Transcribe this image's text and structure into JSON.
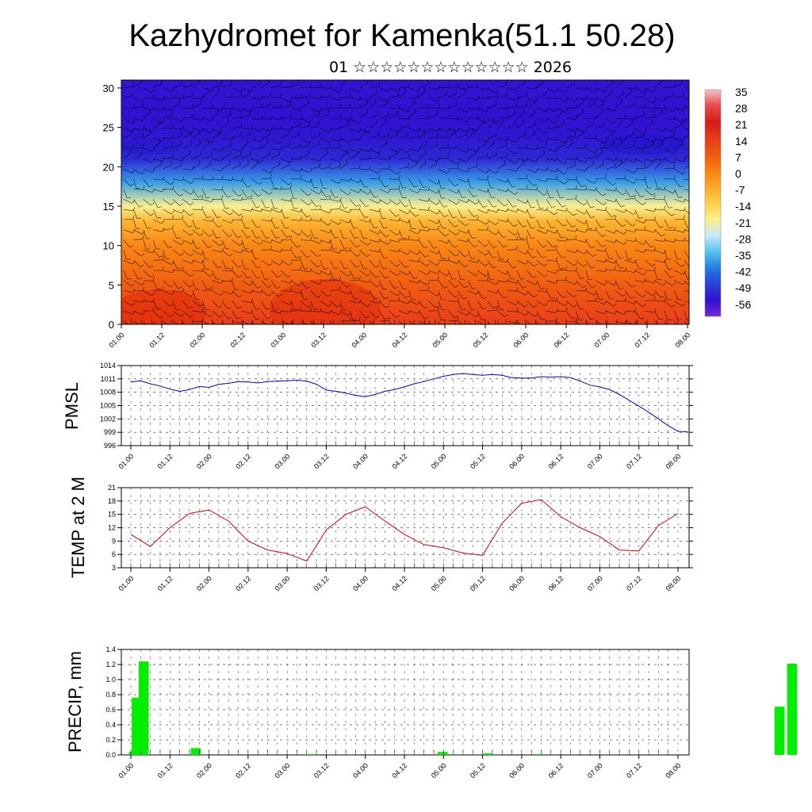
{
  "title": "Kazhydromet for Kamenka(51.1 50.28)",
  "subtitle": "01 ☆☆☆☆☆☆☆☆☆☆☆☆☆ 2026",
  "x_ticks": [
    "01.00",
    "01.12",
    "02.00",
    "02.12",
    "03.00",
    "03.12",
    "04.00",
    "04.12",
    "05.00",
    "05.12",
    "06.00",
    "06.12",
    "07.00",
    "07.12",
    "08.00"
  ],
  "chart_data": [
    {
      "type": "heatmap",
      "name": "vertical cross-section (temperature shading with wind barbs)",
      "y_ticks": [
        "0",
        "5",
        "10",
        "15",
        "20",
        "25",
        "30"
      ],
      "ylim": [
        0,
        31
      ],
      "colorbar": {
        "labels": [
          "35",
          "28",
          "21",
          "14",
          "7",
          "0",
          "-7",
          "-14",
          "-21",
          "-28",
          "-35",
          "-42",
          "-49",
          "-56"
        ],
        "colors": [
          "#f2c4c4",
          "#e84a4a",
          "#d51a1a",
          "#e83a1a",
          "#f05a10",
          "#f88010",
          "#fcaa28",
          "#fdd04a",
          "#fdf08a",
          "#c8e8f8",
          "#58c4f0",
          "#2080e0",
          "#2a40d8",
          "#3010d0",
          "#7828d8"
        ]
      },
      "temperature_profile": [
        [
          0,
          16
        ],
        [
          5,
          9
        ],
        [
          10,
          1
        ],
        [
          13,
          -7
        ],
        [
          15,
          -20
        ],
        [
          18,
          -38
        ],
        [
          21,
          -52
        ],
        [
          24,
          -55
        ],
        [
          27,
          -56
        ],
        [
          30,
          -55
        ]
      ]
    },
    {
      "type": "line",
      "ylabel": "PMSL",
      "y_ticks": [
        "996",
        "999",
        "1002",
        "1005",
        "1008",
        "1011",
        "1014"
      ],
      "ylim": [
        996,
        1014
      ],
      "color": "#0000cc",
      "x": [
        0,
        1,
        2,
        3,
        4,
        5,
        6,
        7,
        8,
        9,
        10,
        11,
        12,
        13,
        14,
        15,
        16,
        17,
        18,
        19,
        20,
        21,
        22,
        23,
        24,
        25,
        26,
        27,
        28,
        29,
        30,
        31,
        32,
        33,
        34,
        35,
        36,
        37,
        38,
        39,
        40,
        41,
        42,
        43,
        44,
        45,
        46,
        47,
        48,
        49,
        50,
        51,
        52,
        53,
        54,
        55,
        56,
        57
      ],
      "values": [
        1010.3,
        1010.6,
        1009.9,
        1009.4,
        1008.7,
        1008.2,
        1008.6,
        1009.3,
        1009.1,
        1009.8,
        1010.0,
        1010.4,
        1010.3,
        1010.1,
        1010.4,
        1010.5,
        1010.6,
        1010.7,
        1010.5,
        1009.8,
        1008.5,
        1008.2,
        1007.8,
        1007.3,
        1007.0,
        1007.5,
        1008.2,
        1008.6,
        1009.2,
        1009.9,
        1010.4,
        1011.0,
        1011.6,
        1012.0,
        1012.2,
        1012.0,
        1011.8,
        1012.0,
        1011.8,
        1011.3,
        1011.2,
        1011.2,
        1011.5,
        1011.4,
        1011.5,
        1011.3,
        1010.5,
        1009.6,
        1009.2,
        1008.6,
        1007.5,
        1006.2,
        1004.9,
        1003.5,
        1002.0,
        1000.5,
        999.2,
        999.1
      ]
    },
    {
      "type": "line",
      "ylabel": "TEMP at 2 M",
      "y_ticks": [
        "3",
        "6",
        "9",
        "12",
        "15",
        "18",
        "21"
      ],
      "ylim": [
        3,
        21
      ],
      "color": "#dd0000",
      "x": [
        0,
        2,
        4,
        6,
        8,
        10,
        12,
        14,
        16,
        18,
        20,
        22,
        24,
        26,
        28,
        30,
        32,
        34,
        36,
        38,
        40,
        42,
        44,
        46,
        48,
        50,
        52,
        54,
        56
      ],
      "values": [
        10.5,
        7.8,
        12.0,
        15.2,
        16.0,
        13.5,
        9.0,
        7.0,
        6.2,
        4.5,
        11.5,
        15.0,
        16.7,
        13.5,
        10.5,
        8.2,
        7.5,
        6.3,
        5.8,
        13.0,
        17.5,
        18.3,
        14.5,
        12.0,
        10.0,
        7.0,
        6.8,
        12.5,
        15.2
      ]
    },
    {
      "type": "bar",
      "ylabel": "PRECIP, mm",
      "y_ticks": [
        "0.0",
        "0.2",
        "0.4",
        "0.6",
        "0.8",
        "1.0",
        "1.2",
        "1.4"
      ],
      "ylim": [
        0,
        1.4
      ],
      "color": "#00ee00",
      "bars": [
        [
          0.04,
          0.04
        ],
        [
          0.075,
          0.76
        ],
        [
          0.12,
          0.17
        ],
        [
          0.165,
          1.24
        ],
        [
          0.83,
          0.09
        ],
        [
          2.29,
          0.01
        ],
        [
          3.99,
          0.04
        ],
        [
          4.57,
          0.02
        ],
        [
          5.24,
          0.01
        ],
        [
          8.3,
          0.64
        ],
        [
          8.46,
          1.21
        ]
      ]
    }
  ]
}
